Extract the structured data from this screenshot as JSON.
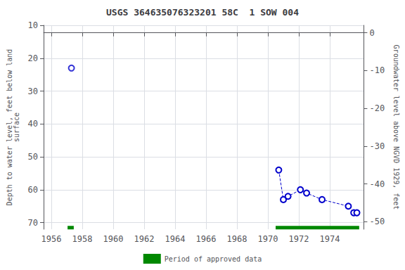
{
  "chart_data": {
    "type": "line",
    "title": "USGS 364635076323201 58C  1 SOW 004",
    "ylabel": "Depth to water level, feet below land\nsurface",
    "y2label": "Groundwater level above NGVD 1929, feet",
    "xlim": [
      1955.5,
      1976.2
    ],
    "xticks": [
      1956,
      1958,
      1960,
      1962,
      1964,
      1966,
      1968,
      1970,
      1972,
      1974
    ],
    "ylim": [
      72,
      10
    ],
    "yticks": [
      10,
      20,
      30,
      40,
      50,
      60,
      70
    ],
    "y2lim": [
      -52,
      2
    ],
    "y2ticks": [
      0,
      -10,
      -20,
      -30,
      -40,
      -50
    ],
    "grid": true,
    "legend": "bottom",
    "series": [
      {
        "type": "scatter",
        "marker": "open_circle",
        "color": "#0000cc",
        "x": [
          1957.3
        ],
        "values": [
          23
        ]
      },
      {
        "type": "line",
        "marker": "open_circle",
        "line_style": "dashed",
        "color": "#0000cc",
        "x": [
          1970.7,
          1971.0,
          1971.3,
          1972.1,
          1972.5,
          1973.5,
          1975.2,
          1975.55,
          1975.75
        ],
        "values": [
          54,
          63,
          62,
          60,
          61,
          63,
          65,
          67,
          67
        ]
      },
      {
        "name": "Period of approved data",
        "type": "segments",
        "color": "#008800",
        "x_start": [
          1957.05,
          1970.5
        ],
        "x_end": [
          1957.45,
          1975.9
        ],
        "values": [
          71.5,
          71.5
        ]
      }
    ]
  }
}
